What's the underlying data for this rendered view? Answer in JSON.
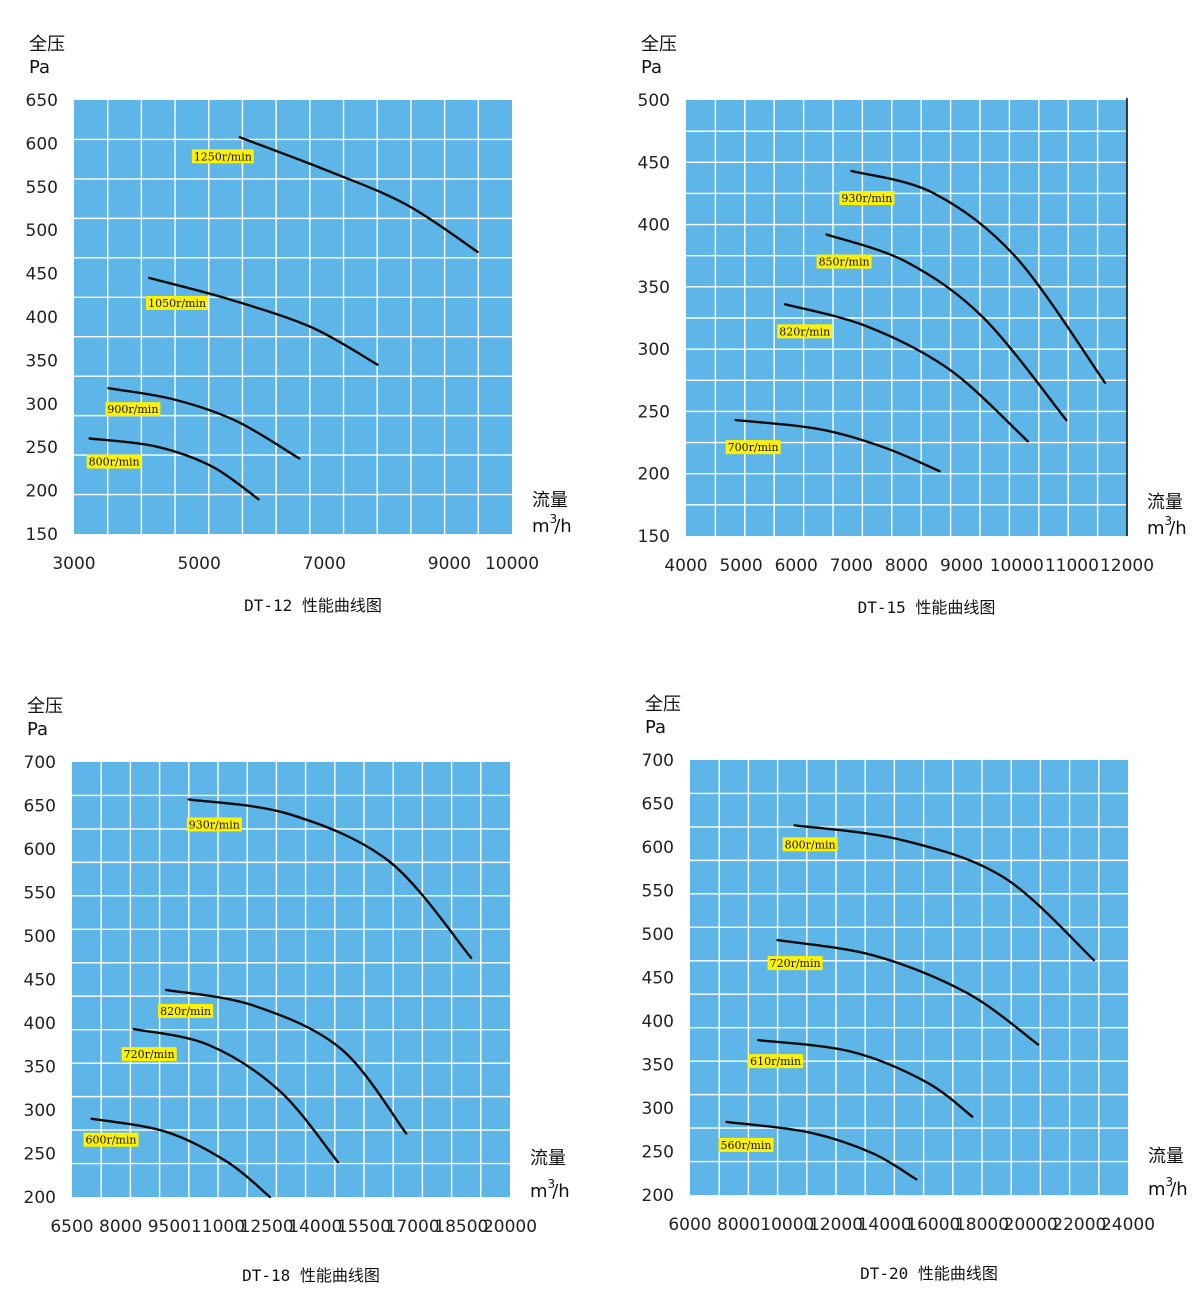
{
  "chart_data": [
    {
      "type": "line",
      "caption": "DT-12 性能曲线图",
      "ylabel": "全压",
      "yunit": "Pa",
      "xlabel": "流量",
      "xunit": "m3/h",
      "xlim": [
        3000,
        10000
      ],
      "ylim": [
        150,
        650
      ],
      "xticks": [
        3000,
        5000,
        7000,
        9000,
        10000
      ],
      "yticks": [
        650,
        600,
        550,
        500,
        450,
        400,
        350,
        300,
        250,
        200,
        150
      ],
      "grid": true,
      "series": [
        {
          "name": "1250r/min",
          "x": [
            5650,
            7000,
            8300,
            9450
          ],
          "y": [
            607,
            570,
            530,
            475
          ]
        },
        {
          "name": "1050r/min",
          "x": [
            4200,
            5500,
            6800,
            7850
          ],
          "y": [
            445,
            420,
            388,
            345
          ]
        },
        {
          "name": "900r/min",
          "x": [
            3550,
            4600,
            5600,
            6600
          ],
          "y": [
            318,
            305,
            280,
            237
          ]
        },
        {
          "name": "800r/min",
          "x": [
            3250,
            4300,
            5200,
            5950
          ],
          "y": [
            260,
            251,
            228,
            190
          ]
        }
      ]
    },
    {
      "type": "line",
      "caption": "DT-15 性能曲线图",
      "ylabel": "全压",
      "yunit": "Pa",
      "xlabel": "流量",
      "xunit": "m3/h",
      "xlim": [
        4000,
        12000
      ],
      "ylim": [
        150,
        500
      ],
      "xticks": [
        4000,
        5000,
        6000,
        7000,
        8000,
        9000,
        10000,
        11000,
        12000
      ],
      "yticks": [
        500,
        450,
        400,
        350,
        300,
        250,
        200,
        150
      ],
      "grid": true,
      "series": [
        {
          "name": "930r/min",
          "x": [
            7000,
            8500,
            10000,
            11600
          ],
          "y": [
            443,
            425,
            373,
            273
          ]
        },
        {
          "name": "850r/min",
          "x": [
            6550,
            8000,
            9400,
            10900
          ],
          "y": [
            392,
            370,
            325,
            243
          ]
        },
        {
          "name": "820r/min",
          "x": [
            5800,
            7300,
            8800,
            10200
          ],
          "y": [
            336,
            318,
            283,
            226
          ]
        },
        {
          "name": "700r/min",
          "x": [
            4900,
            6400,
            7600,
            8600
          ],
          "y": [
            243,
            236,
            221,
            202
          ]
        }
      ]
    },
    {
      "type": "line",
      "caption": "DT-18 性能曲线图",
      "ylabel": "全压",
      "yunit": "Pa",
      "xlabel": "流量",
      "xunit": "m3/h",
      "xlim": [
        6500,
        20000
      ],
      "ylim": [
        200,
        700
      ],
      "xticks": [
        6500,
        8000,
        9500,
        11000,
        12500,
        14000,
        15500,
        17000,
        18500,
        20000
      ],
      "yticks": [
        700,
        650,
        600,
        550,
        500,
        450,
        400,
        350,
        300,
        250,
        200
      ],
      "grid": true,
      "series": [
        {
          "name": "930r/min",
          "x": [
            10100,
            13200,
            16300,
            18800
          ],
          "y": [
            657,
            640,
            585,
            475
          ]
        },
        {
          "name": "820r/min",
          "x": [
            9400,
            12100,
            14800,
            16800
          ],
          "y": [
            438,
            420,
            370,
            273
          ]
        },
        {
          "name": "720r/min",
          "x": [
            8400,
            10700,
            12900,
            14700
          ],
          "y": [
            393,
            375,
            322,
            240
          ]
        },
        {
          "name": "600r/min",
          "x": [
            7100,
            9400,
            11300,
            12600
          ],
          "y": [
            290,
            275,
            240,
            200
          ]
        }
      ]
    },
    {
      "type": "line",
      "caption": "DT-20 性能曲线图",
      "ylabel": "全压",
      "yunit": "Pa",
      "xlabel": "流量",
      "xunit": "m3/h",
      "xlim": [
        6000,
        24000
      ],
      "ylim": [
        200,
        700
      ],
      "xticks": [
        6000,
        8000,
        10000,
        12000,
        14000,
        16000,
        18000,
        20000,
        22000,
        24000
      ],
      "yticks": [
        700,
        650,
        600,
        550,
        500,
        450,
        400,
        350,
        300,
        250,
        200
      ],
      "grid": true,
      "series": [
        {
          "name": "800r/min",
          "x": [
            10300,
            14700,
            18900,
            22600
          ],
          "y": [
            625,
            608,
            565,
            470
          ]
        },
        {
          "name": "720r/min",
          "x": [
            9600,
            13600,
            17400,
            20300
          ],
          "y": [
            493,
            475,
            432,
            373
          ]
        },
        {
          "name": "610r/min",
          "x": [
            8800,
            12600,
            15700,
            17600
          ],
          "y": [
            378,
            365,
            330,
            290
          ]
        },
        {
          "name": "560r/min",
          "x": [
            7500,
            10900,
            13500,
            15300
          ],
          "y": [
            284,
            272,
            248,
            218
          ]
        }
      ]
    }
  ]
}
